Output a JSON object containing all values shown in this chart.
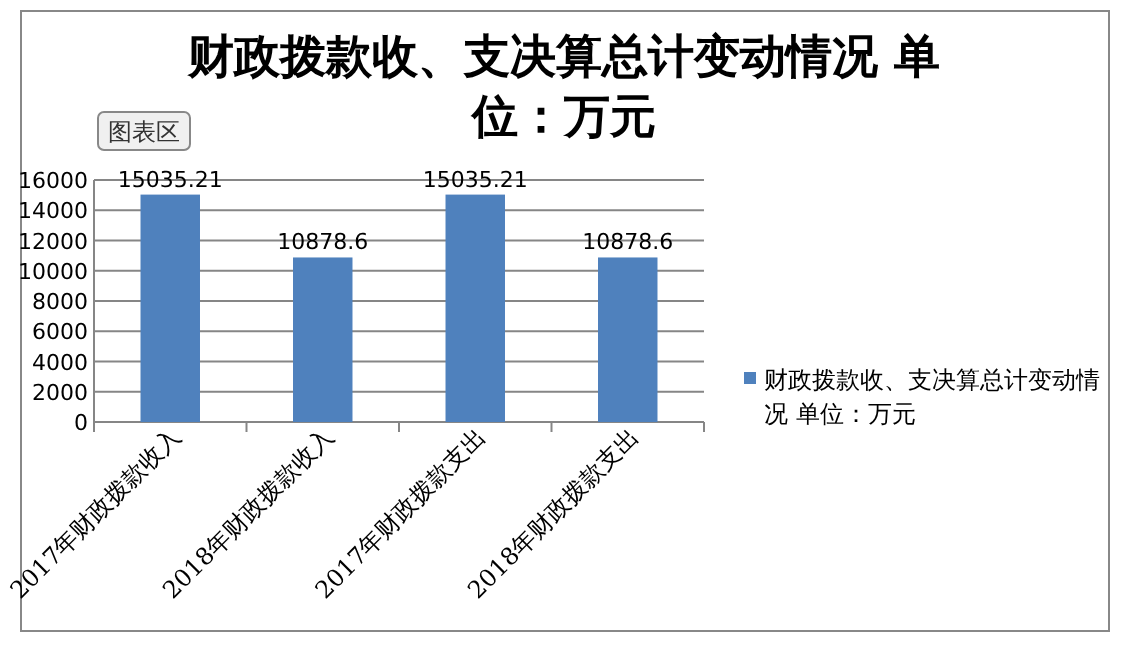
{
  "chart_data": {
    "type": "bar",
    "title": "财政拨款收、支决算总计变动情况   单位：万元",
    "annotations": [
      "图表区"
    ],
    "categories": [
      "2017年财政拨款收入",
      "2018年财政拨款收入",
      "2017年财政拨款支出",
      "2018年财政拨款支出"
    ],
    "series": [
      {
        "name": "财政拨款收、支决算总计变动情况   单位：万元",
        "color": "#4f81bd",
        "values": [
          15035.21,
          10878.6,
          15035.21,
          10878.6
        ]
      }
    ],
    "ylim": [
      0,
      16000
    ],
    "yticks": [
      0,
      2000,
      4000,
      6000,
      8000,
      10000,
      12000,
      14000,
      16000
    ],
    "grid": "y",
    "legend": "right",
    "data_labels": true
  }
}
